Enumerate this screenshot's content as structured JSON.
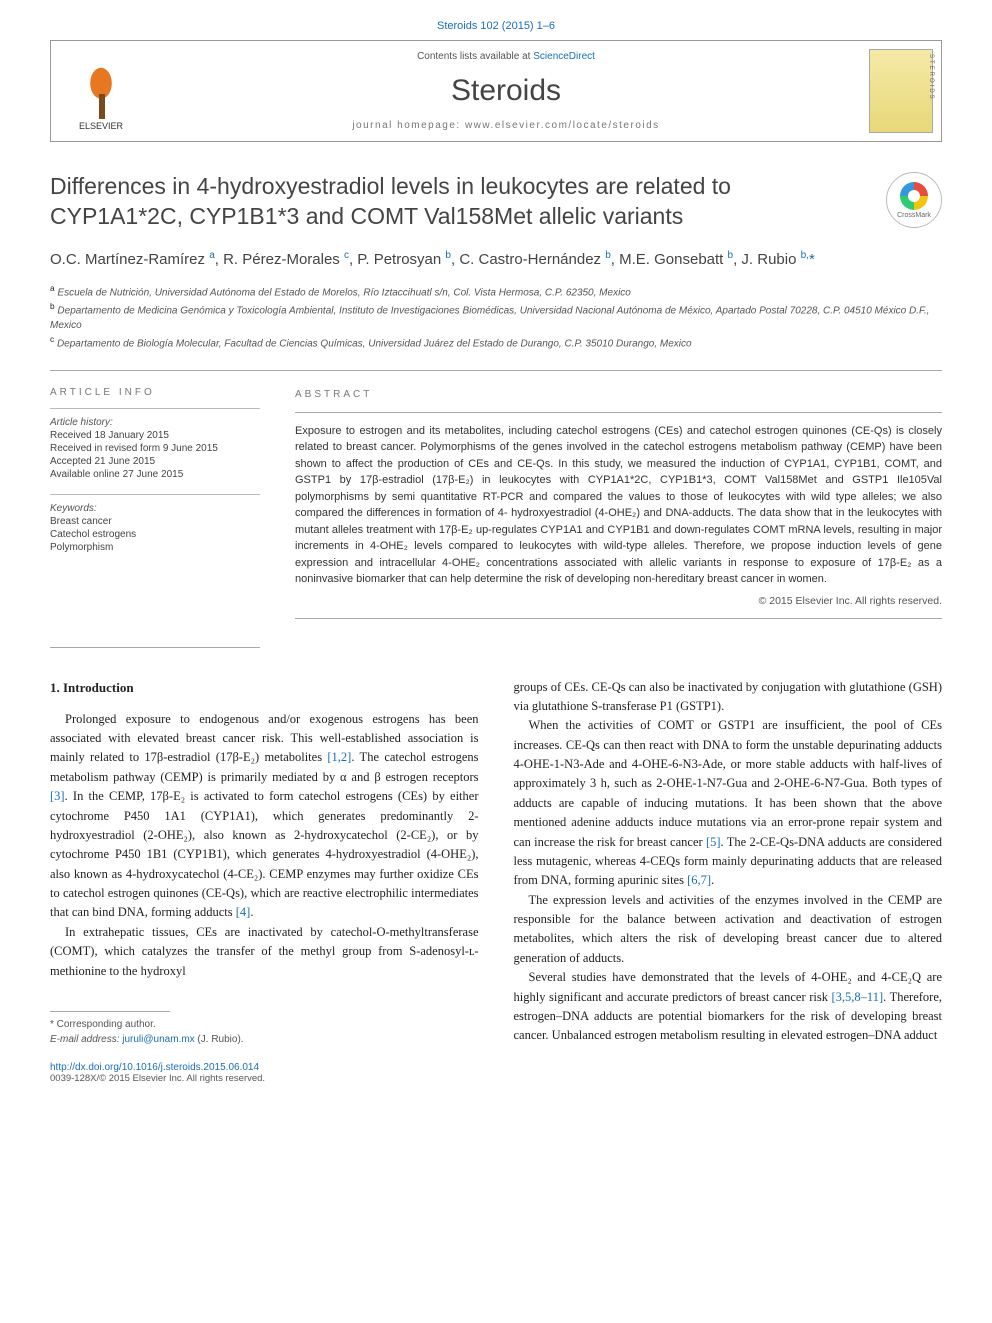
{
  "citation": "Steroids 102 (2015) 1–6",
  "header": {
    "contents_prefix": "Contents lists available at ",
    "contents_link": "ScienceDirect",
    "journal": "Steroids",
    "homepage": "journal homepage: www.elsevier.com/locate/steroids",
    "publisher": "ELSEVIER"
  },
  "crossmark": "CrossMark",
  "title": "Differences in 4-hydroxyestradiol levels in leukocytes are related to CYP1A1*2C, CYP1B1*3 and COMT Val158Met allelic variants",
  "authors_html": "O.C. Martínez-Ramírez <sup>a</sup>, R. Pérez-Morales <sup>c</sup>, P. Petrosyan <sup>b</sup>, C. Castro-Hernández <sup>b</sup>, M.E. Gonsebatt <sup>b</sup>, J. Rubio <sup class=\"author-link\">b,</sup><span class=\"author-link\">*</span>",
  "affiliations": {
    "a": "Escuela de Nutrición, Universidad Autónoma del Estado de Morelos, Río Iztaccihuatl s/n, Col. Vista Hermosa, C.P. 62350, Mexico",
    "b": "Departamento de Medicina Genómica y Toxicología Ambiental, Instituto de Investigaciones Biomédicas, Universidad Nacional Autónoma de México, Apartado Postal 70228, C.P. 04510 México D.F., Mexico",
    "c": "Departamento de Biología Molecular, Facultad de Ciencias Químicas, Universidad Juárez del Estado de Durango, C.P. 35010 Durango, Mexico"
  },
  "info_label": "ARTICLE INFO",
  "abstract_label": "ABSTRACT",
  "history": {
    "heading": "Article history:",
    "received": "Received 18 January 2015",
    "revised": "Received in revised form 9 June 2015",
    "accepted": "Accepted 21 June 2015",
    "online": "Available online 27 June 2015"
  },
  "keywords": {
    "heading": "Keywords:",
    "k1": "Breast cancer",
    "k2": "Catechol estrogens",
    "k3": "Polymorphism"
  },
  "abstract": "Exposure to estrogen and its metabolites, including catechol estrogens (CEs) and catechol estrogen quinones (CE-Qs) is closely related to breast cancer. Polymorphisms of the genes involved in the catechol estrogens metabolism pathway (CEMP) have been shown to affect the production of CEs and CE-Qs. In this study, we measured the induction of CYP1A1, CYP1B1, COMT, and GSTP1 by 17β-estradiol (17β-E₂) in leukocytes with CYP1A1*2C, CYP1B1*3, COMT Val158Met and GSTP1 Ile105Val polymorphisms by semi quantitative RT-PCR and compared the values to those of leukocytes with wild type alleles; we also compared the differences in formation of 4- hydroxyestradiol (4-OHE₂) and DNA-adducts. The data show that in the leukocytes with mutant alleles treatment with 17β-E₂ up-regulates CYP1A1 and CYP1B1 and down-regulates COMT mRNA levels, resulting in major increments in 4-OHE₂ levels compared to leukocytes with wild-type alleles. Therefore, we propose induction levels of gene expression and intracellular 4-OHE₂ concentrations associated with allelic variants in response to exposure of 17β-E₂ as a noninvasive biomarker that can help determine the risk of developing non-hereditary breast cancer in women.",
  "copyright": "© 2015 Elsevier Inc. All rights reserved.",
  "intro_heading": "1. Introduction",
  "intro": {
    "p1a": "Prolonged exposure to endogenous and/or exogenous estrogens has been associated with elevated breast cancer risk. This well-established association is mainly related to 17β-estradiol (17β-E₂) metabolites ",
    "r1": "[1,2]",
    "p1b": ". The catechol estrogens metabolism pathway (CEMP) is primarily mediated by α and β estrogen receptors ",
    "r2": "[3]",
    "p1c": ". In the CEMP, 17β-E₂ is activated to form catechol estrogens (CEs) by either cytochrome P450 1A1 (CYP1A1), which generates predominantly 2-hydroxyestradiol (2-OHE₂), also known as 2-hydroxycatechol (2-CE₂), or by cytochrome P450 1B1 (CYP1B1), which generates 4-hydroxyestradiol (4-OHE₂), also known as 4-hydroxycatechol (4-CE₂). CEMP enzymes may further oxidize CEs to catechol estrogen quinones (CE-Qs), which are reactive electrophilic intermediates that can bind DNA, forming adducts ",
    "r3": "[4]",
    "p1d": ".",
    "p2": "In extrahepatic tissues, CEs are inactivated by catechol-O-methyltransferase (COMT), which catalyzes the transfer of the methyl group from S-adenosyl-ʟ-methionine to the hydroxyl",
    "p3": "groups of CEs. CE-Qs can also be inactivated by conjugation with glutathione (GSH) via glutathione S-transferase P1 (GSTP1).",
    "p4a": "When the activities of COMT or GSTP1 are insufficient, the pool of CEs increases. CE-Qs can then react with DNA to form the unstable depurinating adducts 4-OHE-1-N3-Ade and 4-OHE-6-N3-Ade, or more stable adducts with half-lives of approximately 3 h, such as 2-OHE-1-N7-Gua and 2-OHE-6-N7-Gua. Both types of adducts are capable of inducing mutations. It has been shown that the above mentioned adenine adducts induce mutations via an error-prone repair system and can increase the risk for breast cancer ",
    "r4": "[5]",
    "p4b": ". The 2-CE-Qs-DNA adducts are considered less mutagenic, whereas 4-CEQs form mainly depurinating adducts that are released from DNA, forming apurinic sites ",
    "r5": "[6,7]",
    "p4c": ".",
    "p5": "The expression levels and activities of the enzymes involved in the CEMP are responsible for the balance between activation and deactivation of estrogen metabolites, which alters the risk of developing breast cancer due to altered generation of adducts.",
    "p6a": "Several studies have demonstrated that the levels of 4-OHE₂ and 4-CE₂Q are highly significant and accurate predictors of breast cancer risk ",
    "r6": "[3,5,8–11]",
    "p6b": ". Therefore, estrogen–DNA adducts are potential biomarkers for the risk of developing breast cancer. Unbalanced estrogen metabolism resulting in elevated estrogen–DNA adduct"
  },
  "corresponding": {
    "star": "* Corresponding author.",
    "email_label": "E-mail address: ",
    "email": "juruli@unam.mx",
    "name": " (J. Rubio)."
  },
  "doi": "http://dx.doi.org/10.1016/j.steroids.2015.06.014",
  "issn": "0039-128X/© 2015 Elsevier Inc. All rights reserved.",
  "colors": {
    "link": "#1a6eb5",
    "text": "#222",
    "muted": "#777",
    "border": "#aaa"
  }
}
